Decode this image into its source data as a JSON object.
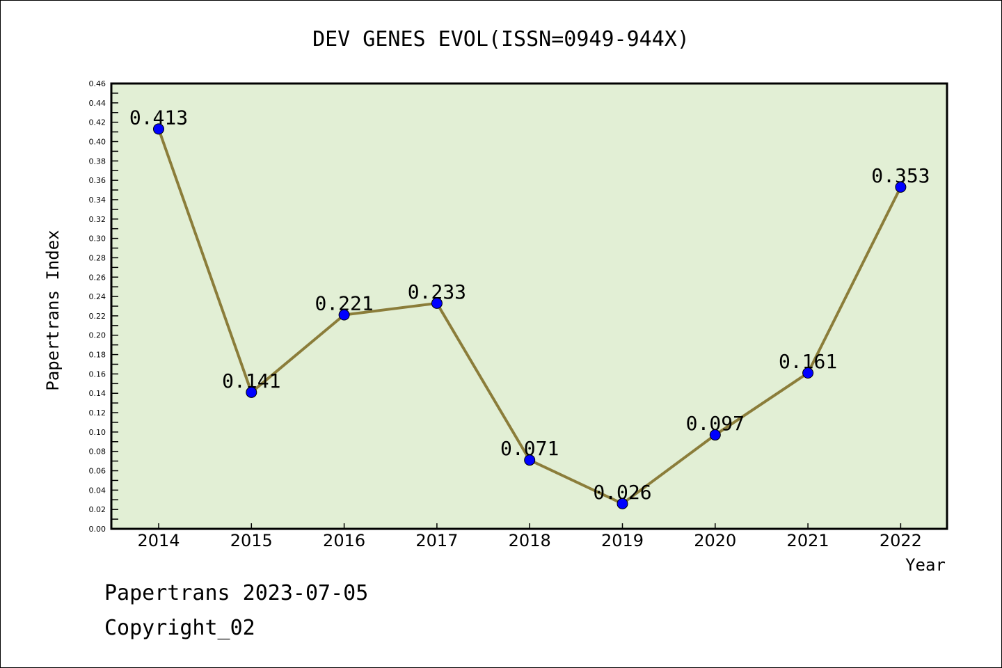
{
  "chart_data": {
    "type": "line",
    "title": "DEV GENES EVOL(ISSN=0949-944X)",
    "xlabel": "Year",
    "ylabel": "Papertrans Index",
    "categories": [
      "2014",
      "2015",
      "2016",
      "2017",
      "2018",
      "2019",
      "2020",
      "2021",
      "2022"
    ],
    "series": [
      {
        "name": "Papertrans Index",
        "values": [
          0.413,
          0.141,
          0.221,
          0.233,
          0.071,
          0.026,
          0.097,
          0.161,
          0.353
        ]
      }
    ],
    "data_labels": [
      "0.413",
      "0.141",
      "0.221",
      "0.233",
      "0.071",
      "0.026",
      "0.097",
      "0.161",
      "0.353"
    ],
    "ylim": [
      0,
      0.46
    ],
    "yticks": [
      "0.00",
      "0.02",
      "0.04",
      "0.06",
      "0.08",
      "0.10",
      "0.12",
      "0.14",
      "0.16",
      "0.18",
      "0.20",
      "0.22",
      "0.24",
      "0.26",
      "0.28",
      "0.30",
      "0.32",
      "0.34",
      "0.36",
      "0.38",
      "0.40",
      "0.42",
      "0.44",
      "0.46"
    ],
    "grid": false,
    "legend": "none",
    "colors": {
      "line": "#8b7d3a",
      "marker": "#0000ff",
      "plot_bg": "#e2efd5"
    }
  },
  "footer": {
    "line1": "Papertrans 2023-07-05",
    "line2": "Copyright_02"
  }
}
